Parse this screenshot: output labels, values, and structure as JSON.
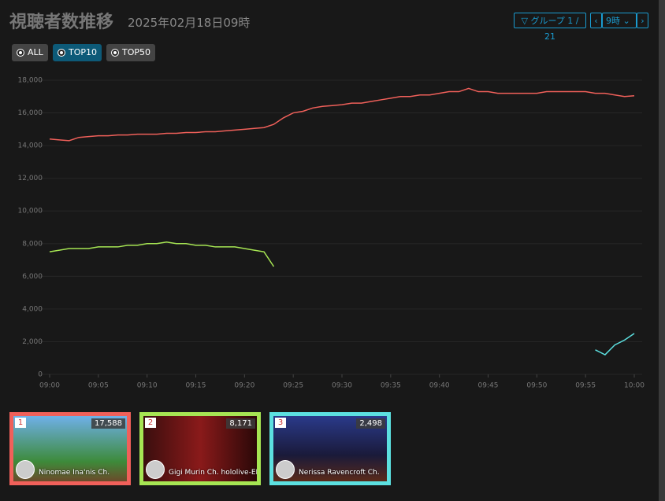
{
  "header": {
    "title": "視聴者数推移",
    "subtitle": "2025年02月18日09時"
  },
  "controls": {
    "group": "グループ 1 / 21",
    "hour": "9時",
    "filters": [
      "ALL",
      "TOP10",
      "TOP50"
    ]
  },
  "chart_data": {
    "type": "line",
    "x": [
      0,
      1,
      2,
      3,
      4,
      5,
      6,
      7,
      8,
      9,
      10,
      11,
      12,
      13,
      14,
      15,
      16,
      17,
      18,
      19,
      20,
      21,
      22,
      23,
      24,
      25,
      26,
      27,
      28,
      29,
      30,
      31,
      32,
      33,
      34,
      35,
      36,
      37,
      38,
      39,
      40,
      41,
      42,
      43,
      44,
      45,
      46,
      47,
      48,
      49,
      50,
      51,
      52,
      53,
      54,
      55,
      56,
      57,
      58,
      59,
      60
    ],
    "xlim": [
      0,
      60
    ],
    "xticks": [
      {
        "value": 0,
        "label": "09:00"
      },
      {
        "value": 5,
        "label": "09:05"
      },
      {
        "value": 10,
        "label": "09:10"
      },
      {
        "value": 15,
        "label": "09:15"
      },
      {
        "value": 20,
        "label": "09:20"
      },
      {
        "value": 25,
        "label": "09:25"
      },
      {
        "value": 30,
        "label": "09:30"
      },
      {
        "value": 35,
        "label": "09:35"
      },
      {
        "value": 40,
        "label": "09:40"
      },
      {
        "value": 45,
        "label": "09:45"
      },
      {
        "value": 50,
        "label": "09:50"
      },
      {
        "value": 55,
        "label": "09:55"
      },
      {
        "value": 60,
        "label": "10:00"
      }
    ],
    "ylim": [
      0,
      18000
    ],
    "yticks": [
      0,
      {
        "value": 2000,
        "label": "2,000"
      },
      {
        "value": 4000,
        "label": "4,000"
      },
      {
        "value": 6000,
        "label": "6,000"
      },
      {
        "value": 8000,
        "label": "8,000"
      },
      {
        "value": 10000,
        "label": "10,000"
      },
      {
        "value": 12000,
        "label": "12,000"
      },
      {
        "value": 14000,
        "label": "14,000"
      },
      {
        "value": 16000,
        "label": "16,000"
      },
      {
        "value": 18000,
        "label": "18,000"
      }
    ],
    "grid": true,
    "series": [
      {
        "color": "#f0605a",
        "values": [
          14400,
          14350,
          14300,
          14500,
          14550,
          14600,
          14600,
          14650,
          14650,
          14700,
          14700,
          14700,
          14750,
          14750,
          14800,
          14800,
          14850,
          14850,
          14900,
          14950,
          15000,
          15050,
          15100,
          15300,
          15700,
          16000,
          16100,
          16300,
          16400,
          16450,
          16500,
          16600,
          16600,
          16700,
          16800,
          16900,
          17000,
          17000,
          17100,
          17100,
          17200,
          17300,
          17300,
          17500,
          17300,
          17300,
          17200,
          17200,
          17200,
          17200,
          17200,
          17300,
          17300,
          17300,
          17300,
          17300,
          17200,
          17200,
          17100,
          17000,
          17050
        ]
      },
      {
        "color": "#a6e553",
        "values": [
          7500,
          7600,
          7700,
          7700,
          7700,
          7800,
          7800,
          7800,
          7900,
          7900,
          8000,
          8000,
          8100,
          8000,
          8000,
          7900,
          7900,
          7800,
          7800,
          7800,
          7700,
          7600,
          7500,
          6600,
          null,
          null,
          null,
          null,
          null,
          null,
          null,
          null,
          null,
          null,
          null,
          null,
          null,
          null,
          null,
          null,
          null,
          null,
          null,
          null,
          null,
          null,
          null,
          null,
          null,
          null,
          null,
          null,
          null,
          null,
          null,
          null,
          null,
          null,
          null,
          null,
          null
        ]
      },
      {
        "color": "#5ce0e0",
        "values": [
          null,
          null,
          null,
          null,
          null,
          null,
          null,
          null,
          null,
          null,
          null,
          null,
          null,
          null,
          null,
          null,
          null,
          null,
          null,
          null,
          null,
          null,
          null,
          null,
          null,
          null,
          null,
          null,
          null,
          null,
          null,
          null,
          null,
          null,
          null,
          null,
          null,
          null,
          null,
          null,
          null,
          null,
          null,
          null,
          null,
          null,
          null,
          null,
          null,
          null,
          null,
          null,
          null,
          null,
          null,
          null,
          1500,
          1200,
          1800,
          2100,
          2500
        ]
      }
    ]
  },
  "cards": [
    {
      "rank": "1",
      "viewers": "17,588",
      "name": "Ninomae Ina'nis Ch.",
      "color": "#f0605a"
    },
    {
      "rank": "2",
      "viewers": "8,171",
      "name": "Gigi Murin Ch. hololive-EN",
      "color": "#a6e553"
    },
    {
      "rank": "3",
      "viewers": "2,498",
      "name": "Nerissa Ravencroft Ch.",
      "color": "#5ce0e0"
    }
  ]
}
